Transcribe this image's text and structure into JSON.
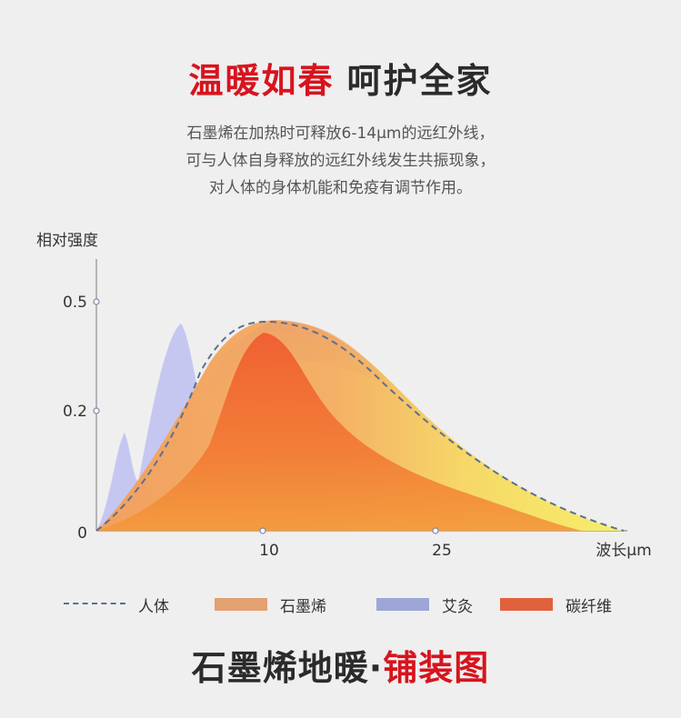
{
  "header": {
    "title_red": "温暖如春",
    "title_dark": "呵护全家",
    "desc_lines": [
      "石墨烯在加热时可释放6-14μm的远红外线，",
      "可与人体自身释放的远红外线发生共振现象，",
      "对人体的身体机能和免疫有调节作用。"
    ]
  },
  "chart_data": {
    "type": "area",
    "ylabel": "相对强度",
    "xlabel": "波长μm",
    "y_ticks": [
      "0.5",
      "0.2",
      "0"
    ],
    "x_ticks": [
      "10",
      "25"
    ],
    "series": [
      {
        "name": "人体",
        "style": "dashed-line",
        "color": "#5d6f8f"
      },
      {
        "name": "石墨烯",
        "style": "area",
        "color": "#e3a070"
      },
      {
        "name": "艾灸",
        "style": "area",
        "color": "#9da6d6"
      },
      {
        "name": "碳纤维",
        "style": "area",
        "color": "#e2613d"
      }
    ]
  },
  "legend": {
    "human": "人体",
    "graphene": "石墨烯",
    "moxibustion": "艾灸",
    "carbon_fiber": "碳纤维"
  },
  "footer": {
    "dark": "石墨烯地暖·",
    "red": "铺装图"
  }
}
